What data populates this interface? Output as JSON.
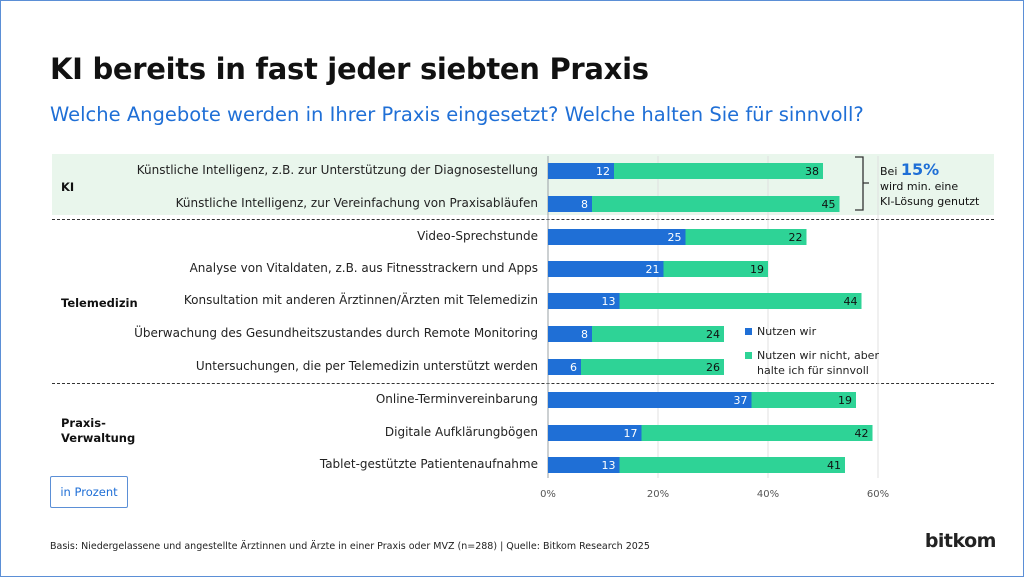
{
  "title": "KI bereits in fast jeder siebten Praxis",
  "subtitle": "Welche Angebote werden in Ihrer Praxis eingesetzt? Welche halten Sie für sinnvoll?",
  "groups": [
    {
      "label": "KI"
    },
    {
      "label": "Telemedizin"
    },
    {
      "label_line1": "Praxis-",
      "label_line2": "Verwaltung"
    }
  ],
  "note": {
    "line1_prefix": "Bei ",
    "highlight": "15%",
    "line2": "wird min. eine",
    "line3": "KI-Lösung genutzt"
  },
  "unit_label": "in Prozent",
  "footnote": "Basis: Niedergelassene und angestellte Ärztinnen und Ärzte in einer Praxis oder MVZ (n=288) | Quelle: Bitkom Research 2025",
  "logo": "bitkom",
  "legend": {
    "item1": "Nutzen wir",
    "item2_line1": "Nutzen wir nicht, aber",
    "item2_line2": "halte ich für sinnvoll"
  },
  "colors": {
    "use": "#1f6fd6",
    "sensible": "#2ed396",
    "ki_band": "#e9f6ec",
    "accent": "#1f6fd6"
  },
  "chart_data": {
    "type": "bar",
    "orientation": "horizontal",
    "stacked": true,
    "categories": [
      "Künstliche Intelligenz, z.B. zur Unterstützung der Diagnosestellung",
      "Künstliche Intelligenz, zur Vereinfachung von Praxisabläufen",
      "Video-Sprechstunde",
      "Analyse von Vitaldaten, z.B. aus Fitnesstrackern und Apps",
      "Konsultation mit anderen Ärztinnen/Ärzten mit Telemedizin",
      "Überwachung des Gesundheitszustandes durch Remote Monitoring",
      "Untersuchungen, die per Telemedizin unterstützt werden",
      "Online-Terminvereinbarung",
      "Digitale Aufklärungbögen",
      "Tablet-gestützte Patientenaufnahme"
    ],
    "series": [
      {
        "name": "Nutzen wir",
        "values": [
          12,
          8,
          25,
          21,
          13,
          8,
          6,
          37,
          17,
          13
        ]
      },
      {
        "name": "Nutzen wir nicht, aber halte ich für sinnvoll",
        "values": [
          38,
          45,
          22,
          19,
          44,
          24,
          26,
          19,
          42,
          41
        ]
      }
    ],
    "xlim": [
      0,
      60
    ],
    "xticks": [
      0,
      20,
      40,
      60
    ],
    "xtick_labels": [
      "0%",
      "20%",
      "40%",
      "60%"
    ],
    "grid": true,
    "legend_position": "right"
  }
}
